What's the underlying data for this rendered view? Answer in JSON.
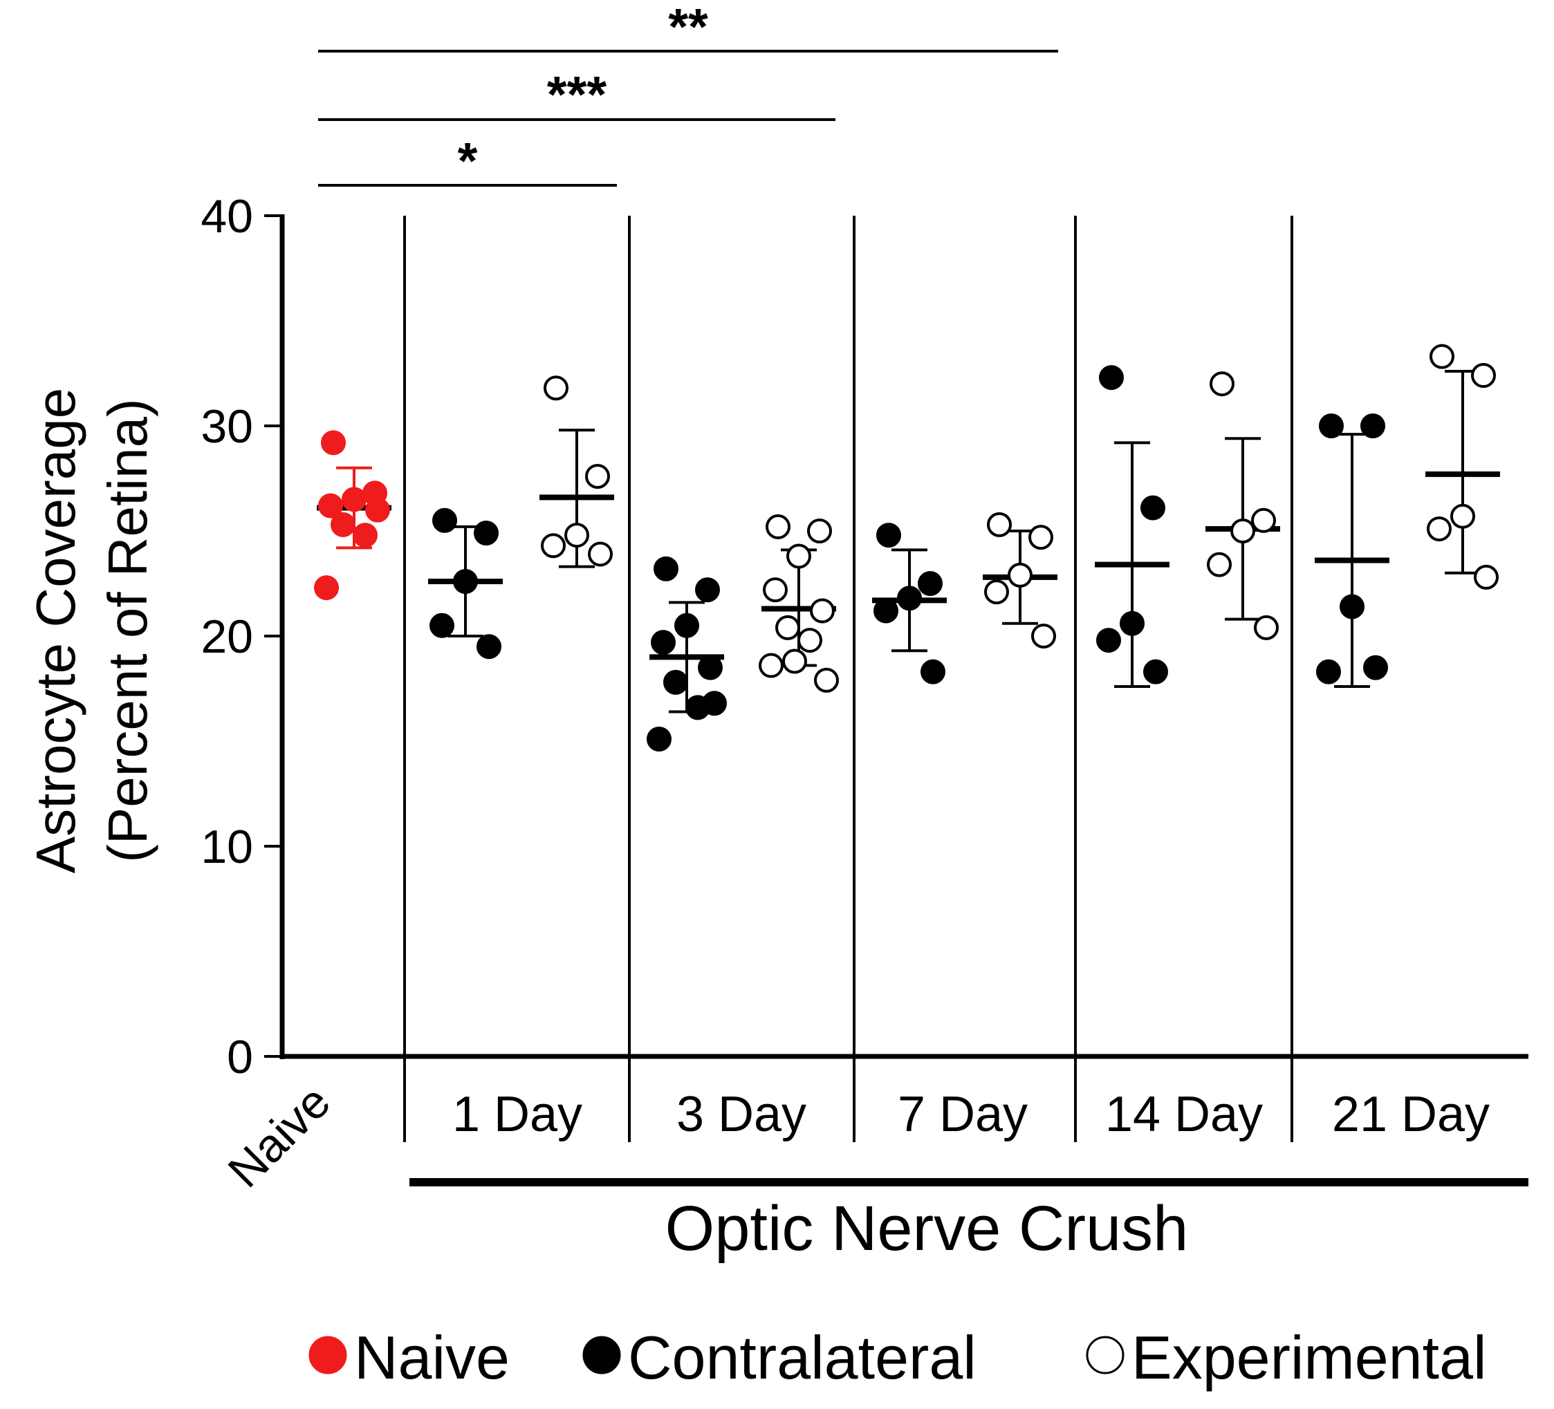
{
  "chart_data": {
    "type": "scatter",
    "ylabel": [
      "Astrocyte Coverage",
      "(Percent of Retina)"
    ],
    "xlabel": "Optic Nerve Crush",
    "ylim": [
      0,
      40
    ],
    "yticks": [
      0,
      10,
      20,
      30,
      40
    ],
    "groups": [
      {
        "label": "Naive"
      },
      {
        "label": "1 Day"
      },
      {
        "label": "3 Day"
      },
      {
        "label": "7 Day"
      },
      {
        "label": "14 Day"
      },
      {
        "label": "21 Day"
      }
    ],
    "series": [
      {
        "name": "Naive",
        "group": 0,
        "color": "#ee1c1c",
        "filled": true,
        "points": [
          29.2,
          26.8,
          26.5,
          26.2,
          26.0,
          25.3,
          24.8,
          22.3
        ],
        "mean": 26.1,
        "err_low": 24.2,
        "err_high": 28.0
      },
      {
        "name": "Contralateral",
        "group": 1,
        "color": "#000000",
        "filled": true,
        "points": [
          25.5,
          24.9,
          22.6,
          20.5,
          19.5
        ],
        "mean": 22.6,
        "err_low": 20.0,
        "err_high": 25.2
      },
      {
        "name": "Experimental",
        "group": 1,
        "color": "#000000",
        "filled": false,
        "points": [
          31.8,
          27.6,
          24.8,
          24.3,
          23.9
        ],
        "mean": 26.6,
        "err_low": 23.3,
        "err_high": 29.8
      },
      {
        "name": "Contralateral",
        "group": 2,
        "color": "#000000",
        "filled": true,
        "points": [
          23.2,
          22.2,
          20.5,
          19.7,
          18.5,
          17.8,
          16.6,
          15.1,
          16.8
        ],
        "mean": 19.0,
        "err_low": 16.4,
        "err_high": 21.6
      },
      {
        "name": "Experimental",
        "group": 2,
        "color": "#000000",
        "filled": false,
        "points": [
          25.2,
          25.0,
          23.8,
          22.2,
          21.2,
          20.4,
          19.8,
          18.6,
          17.9,
          18.8
        ],
        "mean": 21.3,
        "err_low": 18.6,
        "err_high": 24.1
      },
      {
        "name": "Contralateral",
        "group": 3,
        "color": "#000000",
        "filled": true,
        "points": [
          24.8,
          22.5,
          21.8,
          21.2,
          18.3
        ],
        "mean": 21.7,
        "err_low": 19.3,
        "err_high": 24.1
      },
      {
        "name": "Experimental",
        "group": 3,
        "color": "#000000",
        "filled": false,
        "points": [
          25.3,
          24.7,
          22.9,
          22.1,
          20.0
        ],
        "mean": 22.8,
        "err_low": 20.6,
        "err_high": 25.0
      },
      {
        "name": "Contralateral",
        "group": 4,
        "color": "#000000",
        "filled": true,
        "points": [
          32.3,
          26.1,
          20.6,
          19.8,
          18.3
        ],
        "mean": 23.4,
        "err_low": 17.6,
        "err_high": 29.2
      },
      {
        "name": "Experimental",
        "group": 4,
        "color": "#000000",
        "filled": false,
        "points": [
          32.0,
          25.5,
          25.0,
          23.4,
          20.4
        ],
        "mean": 25.1,
        "err_low": 20.8,
        "err_high": 29.4
      },
      {
        "name": "Contralateral",
        "group": 5,
        "color": "#000000",
        "filled": true,
        "points": [
          30.0,
          30.0,
          21.4,
          18.3,
          18.5
        ],
        "mean": 23.6,
        "err_low": 17.6,
        "err_high": 29.6
      },
      {
        "name": "Experimental",
        "group": 5,
        "color": "#000000",
        "filled": false,
        "points": [
          33.3,
          32.4,
          25.7,
          25.1,
          22.8
        ],
        "mean": 27.7,
        "err_low": 23.0,
        "err_high": 32.6
      }
    ],
    "significance": [
      {
        "from": "Naive",
        "to": "1 Day Experimental",
        "label": "*"
      },
      {
        "from": "Naive",
        "to": "3 Day Contralateral",
        "label": "***"
      },
      {
        "from": "Naive",
        "to": "7 Day Experimental",
        "label": "**"
      }
    ],
    "legend": {
      "placement": "bottom",
      "entries": [
        {
          "name": "Naive",
          "color": "#ee1c1c",
          "filled": true
        },
        {
          "name": "Contralateral",
          "color": "#000000",
          "filled": true
        },
        {
          "name": "Experimental",
          "color": "#000000",
          "filled": false
        }
      ]
    },
    "grid": false
  }
}
